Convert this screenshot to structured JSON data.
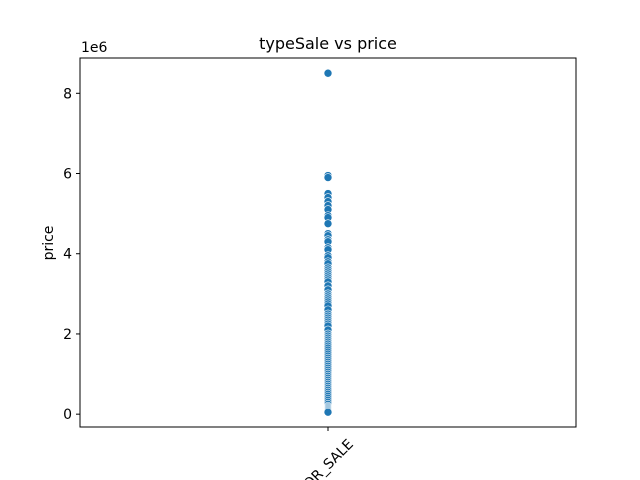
{
  "chart_data": {
    "type": "scatter",
    "title": "typeSale vs price",
    "xlabel": "",
    "ylabel": "price",
    "y_offset_label": "1e6",
    "categories": [
      "FOR_SALE"
    ],
    "ylim": [
      -320000,
      8880000
    ],
    "yticks": [
      0,
      2,
      4,
      6,
      8
    ],
    "y_scale": 1000000,
    "grid": false,
    "marker_color": "#1f77b4",
    "series": [
      {
        "category": "FOR_SALE",
        "values": [
          8500000,
          5950000,
          5900000,
          5500000,
          5400000,
          5300000,
          5200000,
          5100000,
          4950000,
          4900000,
          4750000,
          4500000,
          4450000,
          4350000,
          4300000,
          4150000,
          4100000,
          3950000,
          3900000,
          3800000,
          3750000,
          3650000,
          3600000,
          3550000,
          3500000,
          3450000,
          3400000,
          3350000,
          3300000,
          3200000,
          3100000,
          3000000,
          2950000,
          2900000,
          2850000,
          2800000,
          2750000,
          2700000,
          2600000,
          2500000,
          2450000,
          2400000,
          2350000,
          2300000,
          2250000,
          2200000,
          2100000,
          2000000,
          1950000,
          1900000,
          1850000,
          1800000,
          1750000,
          1700000,
          1650000,
          1600000,
          1550000,
          1500000,
          1450000,
          1400000,
          1350000,
          1300000,
          1250000,
          1200000,
          1150000,
          1100000,
          1050000,
          1000000,
          950000,
          900000,
          850000,
          800000,
          750000,
          700000,
          650000,
          600000,
          550000,
          500000,
          450000,
          400000,
          350000,
          300000,
          250000,
          200000,
          175000,
          150000,
          125000,
          100000,
          75000,
          50000
        ]
      }
    ]
  }
}
